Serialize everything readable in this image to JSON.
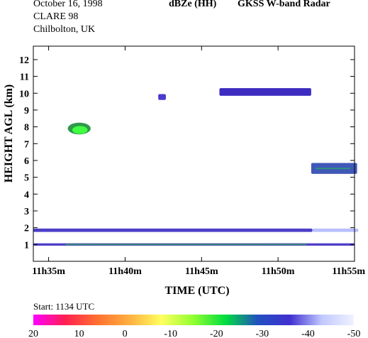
{
  "header": {
    "date": "October 16, 1998",
    "campaign": "CLARE 98",
    "location": "Chilbolton, UK",
    "product": "dBZe (HH)",
    "instrument": "GKSS  W-band Radar"
  },
  "chart_data": {
    "type": "heatmap",
    "title": "dBZe (HH)   GKSS  W-band Radar",
    "xlabel": "TIME (UTC)",
    "ylabel": "HEIGHT AGL (km)",
    "xlim": [
      "11:34:00",
      "11:55:00"
    ],
    "ylim": [
      0,
      12.8
    ],
    "x_ticks": [
      "11h35m",
      "11h40m",
      "11h45m",
      "11h50m",
      "11h55m"
    ],
    "y_ticks": [
      1,
      2,
      3,
      4,
      5,
      6,
      7,
      8,
      9,
      10,
      11,
      12
    ],
    "grid": false,
    "start_label": "Start: 1134 UTC",
    "colorbar": {
      "ticks": [
        20,
        10,
        0,
        -10,
        -20,
        -30,
        -40,
        -50
      ],
      "colors": [
        "#ff00ff",
        "#ff2050",
        "#ff7030",
        "#ffb040",
        "#ffff60",
        "#90ff30",
        "#00dd40",
        "#2050c0",
        "#4030d0",
        "#c0c8ff",
        "#f0f2ff"
      ]
    },
    "echoes": [
      {
        "name": "cloud near 8 km",
        "t_start": "11:36:15",
        "t_end": "11:37:45",
        "h_bottom": 7.55,
        "h_top": 8.25,
        "color": "#2f9a4a",
        "core_color": "#40ff40"
      },
      {
        "name": "patch near 9.7 km",
        "t_start": "11:42:10",
        "t_end": "11:42:40",
        "h_bottom": 9.6,
        "h_top": 9.95,
        "color": "#4a3ad0"
      },
      {
        "name": "layer near 10 km",
        "t_start": "11:46:10",
        "t_end": "11:52:10",
        "h_bottom": 9.85,
        "h_top": 10.3,
        "color": "#3d2cc0"
      },
      {
        "name": "layer near 5.5 km",
        "t_start": "11:52:10",
        "t_end": "11:55:10",
        "h_bottom": 5.2,
        "h_top": 5.85,
        "color": "#4058b8",
        "core_color": "#2aa070"
      },
      {
        "name": "layer near 1.9 km",
        "t_start": "11:34:00",
        "t_end": "11:52:15",
        "h_bottom": 1.75,
        "h_top": 1.95,
        "color": "#4b3fc8"
      },
      {
        "name": "faint layer near 1.9 km",
        "t_start": "11:52:15",
        "t_end": "11:55:15",
        "h_bottom": 1.75,
        "h_top": 1.95,
        "color": "#b8c0ff"
      },
      {
        "name": "layer near 1 km",
        "t_start": "11:34:00",
        "t_end": "11:55:00",
        "h_bottom": 0.93,
        "h_top": 1.07,
        "color": "#5040c8",
        "core_color": "#30a060"
      }
    ]
  }
}
